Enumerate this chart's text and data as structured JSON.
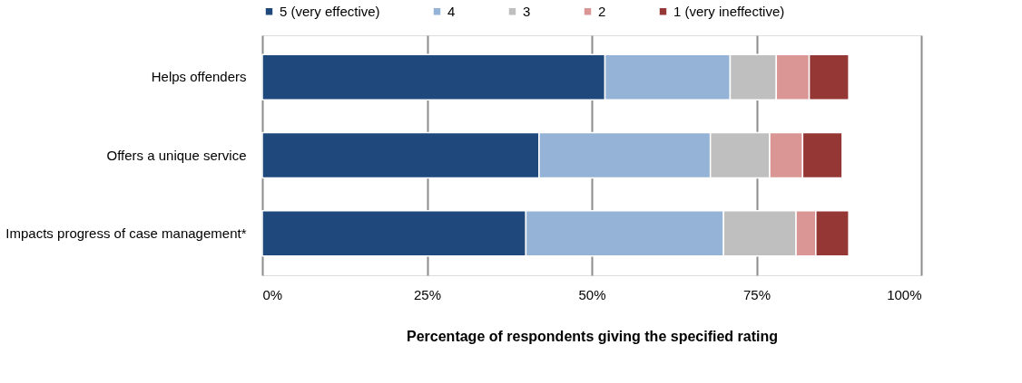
{
  "chart_data": {
    "type": "bar",
    "orientation": "horizontal",
    "stacked": true,
    "categories": [
      "Helps offenders",
      "Offers a unique service",
      "Impacts progress of case management*"
    ],
    "series": [
      {
        "name": "5 (very effective)",
        "color": "#1f497d",
        "values": [
          52,
          42,
          40
        ]
      },
      {
        "name": "4",
        "color": "#95b3d7",
        "values": [
          19,
          26,
          30
        ]
      },
      {
        "name": "3",
        "color": "#bfbfbf",
        "values": [
          7,
          9,
          11
        ]
      },
      {
        "name": "2",
        "color": "#da9694",
        "values": [
          5,
          5,
          3
        ]
      },
      {
        "name": "1 (very ineffective)",
        "color": "#953735",
        "values": [
          6,
          6,
          5
        ]
      }
    ],
    "xlabel": "Percentage of respondents giving the specified rating",
    "xlim": [
      0,
      100
    ],
    "xticks": [
      {
        "value": 0,
        "label": "0%"
      },
      {
        "value": 25,
        "label": "25%"
      },
      {
        "value": 50,
        "label": "50%"
      },
      {
        "value": 75,
        "label": "75%"
      },
      {
        "value": 100,
        "label": "100%"
      }
    ],
    "grid": "x",
    "legend": "top"
  }
}
